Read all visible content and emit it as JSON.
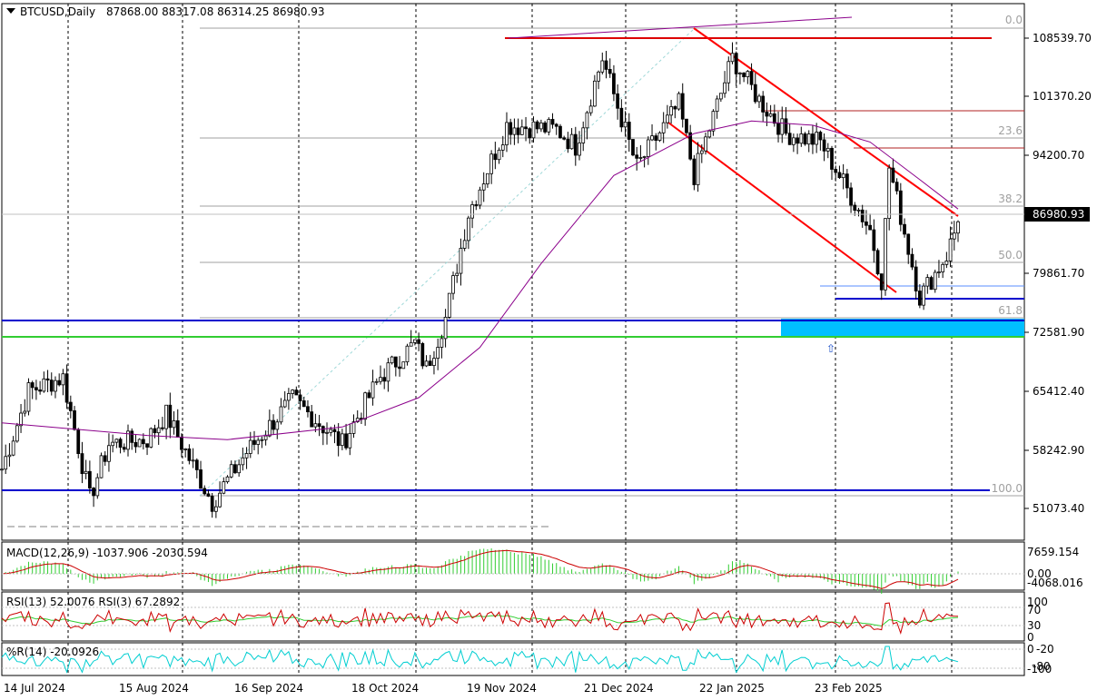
{
  "header": {
    "symbol": "BTCUSD,Daily",
    "ohlc": "87868.00 88317.08 86314.25 86980.93"
  },
  "colors": {
    "bull": "#000000",
    "candle_up_fill": "#ffffff",
    "ma": "#8b008b",
    "channel": "#ff0000",
    "support_blue": "#0000cd",
    "support_green": "#32cd32",
    "zone": "#00bfff",
    "macd_hist": "#32cd32",
    "macd_signal": "#cc0000",
    "rsi13": "#32cd32",
    "rsi3": "#cc0000",
    "wpr": "#00ced1",
    "grid": "#000000"
  },
  "price_axis": {
    "ticks": [
      "108539.70",
      "101370.20",
      "94200.70",
      "79861.70",
      "72581.90",
      "65412.40",
      "58242.90",
      "51073.40"
    ],
    "current": "86980.93"
  },
  "fib_levels": [
    "0.0",
    "23.6",
    "38.2",
    "50.0",
    "61.8",
    "100.0"
  ],
  "time_axis": [
    "14 Jul 2024",
    "15 Aug 2024",
    "16 Sep 2024",
    "18 Oct 2024",
    "19 Nov 2024",
    "21 Dec 2024",
    "22 Jan 2025",
    "23 Feb 2025"
  ],
  "macd": {
    "label": "MACD(12,26,9) -1037.906 -2030.594",
    "ticks": [
      "7659.154",
      "0.00",
      "-4068.016"
    ]
  },
  "rsi": {
    "label": "RSI(13) 52.0076  RSI(3) 67.2892",
    "ticks": [
      "100",
      "70",
      "30",
      "0"
    ]
  },
  "wpr": {
    "label": "%R(14) -20.0926",
    "ticks": [
      "0",
      "-20",
      "-80",
      "-100"
    ]
  },
  "arrow_marker": "⇧",
  "chart_data": {
    "type": "candlestick",
    "title": "BTCUSD,Daily",
    "ylim": [
      49000,
      113000
    ],
    "x_range": [
      "2024-07-13",
      "2025-03-20"
    ],
    "last_close": 86980.93,
    "price_path_approx": [
      [
        "2024-07-13",
        57500
      ],
      [
        "2024-07-20",
        66800
      ],
      [
        "2024-07-29",
        68400
      ],
      [
        "2024-08-05",
        54000
      ],
      [
        "2024-08-10",
        60500
      ],
      [
        "2024-08-20",
        61000
      ],
      [
        "2024-08-25",
        64000
      ],
      [
        "2024-09-06",
        53500
      ],
      [
        "2024-09-15",
        59500
      ],
      [
        "2024-09-27",
        65800
      ],
      [
        "2024-10-10",
        60500
      ],
      [
        "2024-10-20",
        68500
      ],
      [
        "2024-10-29",
        72500
      ],
      [
        "2024-11-01",
        69500
      ],
      [
        "2024-11-06",
        75500
      ],
      [
        "2024-11-12",
        88000
      ],
      [
        "2024-11-22",
        98500
      ],
      [
        "2024-12-05",
        98000
      ],
      [
        "2024-12-10",
        96000
      ],
      [
        "2024-12-17",
        106500
      ],
      [
        "2024-12-26",
        93500
      ],
      [
        "2025-01-06",
        101000
      ],
      [
        "2025-01-10",
        92500
      ],
      [
        "2025-01-20",
        106500
      ],
      [
        "2025-01-27",
        101500
      ],
      [
        "2025-02-03",
        97500
      ],
      [
        "2025-02-12",
        96500
      ],
      [
        "2025-02-25",
        86000
      ],
      [
        "2025-02-28",
        80000
      ],
      [
        "2025-03-02",
        93500
      ],
      [
        "2025-03-10",
        78000
      ],
      [
        "2025-03-17",
        83000
      ],
      [
        "2025-03-20",
        86980.93
      ]
    ],
    "ma_path_approx": [
      [
        "2024-07-13",
        63000
      ],
      [
        "2024-08-20",
        61500
      ],
      [
        "2024-09-10",
        61000
      ],
      [
        "2024-10-10",
        62500
      ],
      [
        "2024-10-30",
        66000
      ],
      [
        "2024-11-15",
        72000
      ],
      [
        "2024-12-01",
        82000
      ],
      [
        "2024-12-20",
        92500
      ],
      [
        "2025-01-10",
        97500
      ],
      [
        "2025-01-25",
        99000
      ],
      [
        "2025-02-10",
        98500
      ],
      [
        "2025-02-25",
        96500
      ],
      [
        "2025-03-10",
        92000
      ],
      [
        "2025-03-20",
        88500
      ]
    ],
    "horizontal_levels": [
      {
        "price": 108000,
        "color": "red"
      },
      {
        "price": 74500,
        "color": "blue"
      },
      {
        "price": 72000,
        "color": "green"
      },
      {
        "price": 53000,
        "color": "blue"
      },
      {
        "price": 77000,
        "color": "blue"
      }
    ]
  }
}
